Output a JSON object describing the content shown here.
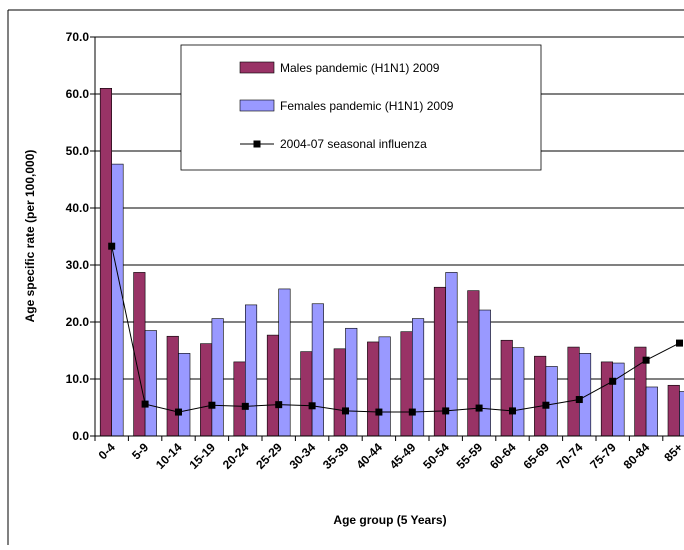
{
  "chart_data": {
    "type": "bar-line",
    "x_label": "Age group (5 Years)",
    "y_label": "Age specific rate (per 100,000)",
    "categories": [
      "0-4",
      "5-9",
      "10-14",
      "15-19",
      "20-24",
      "25-29",
      "30-34",
      "35-39",
      "40-44",
      "45-49",
      "50-54",
      "55-59",
      "60-64",
      "65-69",
      "70-74",
      "75-79",
      "80-84",
      "85+"
    ],
    "series": [
      {
        "name": "Males pandemic (H1N1) 2009",
        "type": "bar",
        "color": "#993366",
        "values": [
          61.0,
          28.7,
          17.5,
          16.2,
          13.0,
          17.7,
          14.8,
          15.3,
          16.5,
          18.3,
          26.1,
          25.5,
          16.8,
          14.0,
          15.6,
          13.0,
          15.6,
          8.9
        ]
      },
      {
        "name": "Females pandemic (H1N1) 2009",
        "type": "bar",
        "color": "#9999ff",
        "values": [
          47.7,
          18.5,
          14.5,
          20.6,
          23.0,
          25.8,
          23.2,
          18.9,
          17.4,
          20.6,
          28.7,
          22.1,
          15.5,
          12.2,
          14.5,
          12.8,
          8.6,
          7.8
        ]
      },
      {
        "name": "2004-07 seasonal influenza",
        "type": "line",
        "color": "#000000",
        "values": [
          33.3,
          5.6,
          4.2,
          5.4,
          5.2,
          5.5,
          5.3,
          4.4,
          4.2,
          4.2,
          4.4,
          4.9,
          4.4,
          5.4,
          6.4,
          9.6,
          13.3,
          16.3
        ]
      }
    ],
    "ylim": [
      0,
      70
    ],
    "yticks": [
      {
        "value": 0,
        "label": "0.0"
      },
      {
        "value": 10,
        "label": "10.0"
      },
      {
        "value": 20,
        "label": "20.0"
      },
      {
        "value": 30,
        "label": "30.0"
      },
      {
        "value": 40,
        "label": "40.0"
      },
      {
        "value": 50,
        "label": "50.0"
      },
      {
        "value": 60,
        "label": "60.0"
      },
      {
        "value": 70,
        "label": "70.0"
      }
    ],
    "grid": true
  }
}
